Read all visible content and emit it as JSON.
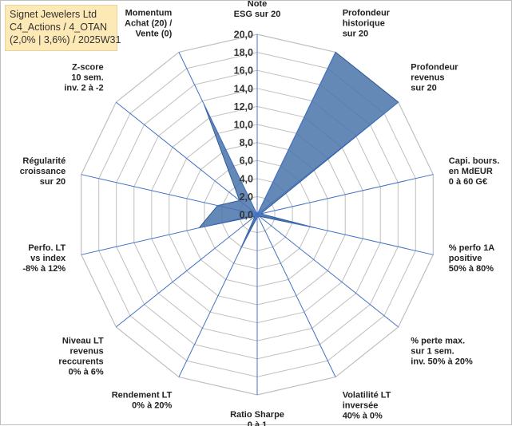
{
  "header": {
    "line1": "Signet Jewelers Ltd",
    "line2": "C4_Actions / 4_OTAN",
    "line3": "(2,0% | 3,6%) / 2025W31"
  },
  "chart_data": {
    "type": "radar",
    "rmin": 0,
    "rmax": 20,
    "ticks": [
      "0,0",
      "2,0",
      "4,0",
      "6,0",
      "8,0",
      "10,0",
      "12,0",
      "14,0",
      "16,0",
      "18,0",
      "20,0"
    ],
    "grid": true,
    "axes": [
      {
        "label": [
          "Note",
          "ESG sur 20"
        ],
        "value": 0
      },
      {
        "label": [
          "Profondeur",
          "historique",
          "sur 20"
        ],
        "value": 20
      },
      {
        "label": [
          "Profondeur",
          "revenus",
          "sur 20"
        ],
        "value": 20
      },
      {
        "label": [
          "Capi. bours.",
          "en MdEUR",
          "0 à 60 G€"
        ],
        "value": 0.4
      },
      {
        "label": [
          "% perfo 1A",
          "positive",
          "50% à 80%"
        ],
        "value": 6.6
      },
      {
        "label": [
          "% perte max.",
          "sur 1 sem.",
          "inv. 50% à 20%"
        ],
        "value": 0.3
      },
      {
        "label": [
          "Volatilité LT",
          "inversée",
          "40% à 0%"
        ],
        "value": 0.3
      },
      {
        "label": [
          "Ratio Sharpe",
          "0 à 1"
        ],
        "value": 0.3
      },
      {
        "label": [
          "Rendement LT",
          "0% à 20%"
        ],
        "value": 4.5
      },
      {
        "label": [
          "Niveau LT",
          "revenus",
          "reccurents",
          "0% à 6%"
        ],
        "value": 0.3
      },
      {
        "label": [
          "Perfo. LT",
          "vs index",
          "-8% à 12%"
        ],
        "value": 6.6
      },
      {
        "label": [
          "Régularité",
          "croissance",
          "sur 20"
        ],
        "value": 4.5
      },
      {
        "label": [
          "Z-score",
          "10 sem.",
          "inv. 2 à -2"
        ],
        "value": 2.5
      },
      {
        "label": [
          "Momentum",
          "Achat (20) /",
          "Vente (0)"
        ],
        "value": 13.6
      }
    ],
    "colors": {
      "fill": "#4a74aa",
      "stroke": "#2e5a94",
      "axis": "#4472c4",
      "grid": "#bfbfbf"
    }
  }
}
